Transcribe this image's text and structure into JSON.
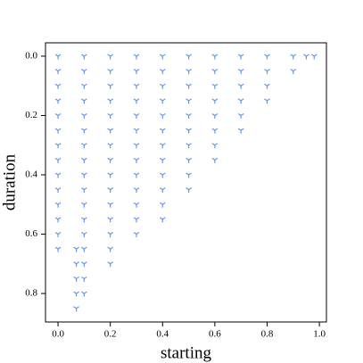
{
  "chart_data": {
    "type": "scatter",
    "xlabel": "starting",
    "ylabel": "duration",
    "color": "#6495ed",
    "marker": "tri_down",
    "y_inverted": true,
    "grid": false,
    "xlim": [
      -0.048,
      1.027
    ],
    "ylim": [
      -0.045,
      0.896
    ],
    "xticks": [
      {
        "value": 0,
        "label": "0.0"
      },
      {
        "value": 0.2,
        "label": "0.2"
      },
      {
        "value": 0.4,
        "label": "0.4"
      },
      {
        "value": 0.6,
        "label": "0.6"
      },
      {
        "value": 0.8,
        "label": "0.8"
      },
      {
        "value": 1,
        "label": "1.0"
      }
    ],
    "yticks": [
      {
        "value": 0,
        "label": "0.0"
      },
      {
        "value": 0.2,
        "label": "0.2"
      },
      {
        "value": 0.4,
        "label": "0.4"
      },
      {
        "value": 0.6,
        "label": "0.6"
      },
      {
        "value": 0.8,
        "label": "0.8"
      }
    ],
    "x": [
      0,
      0,
      0,
      0,
      0,
      0,
      0,
      0,
      0,
      0,
      0,
      0,
      0,
      0,
      0.1,
      0.1,
      0.1,
      0.1,
      0.1,
      0.1,
      0.1,
      0.1,
      0.1,
      0.1,
      0.1,
      0.1,
      0.1,
      0.1,
      0.1,
      0.1,
      0.1,
      0.2,
      0.2,
      0.2,
      0.2,
      0.2,
      0.2,
      0.2,
      0.2,
      0.2,
      0.2,
      0.2,
      0.2,
      0.2,
      0.2,
      0.2,
      0.3,
      0.3,
      0.3,
      0.3,
      0.3,
      0.3,
      0.3,
      0.3,
      0.3,
      0.3,
      0.3,
      0.3,
      0.3,
      0.4,
      0.4,
      0.4,
      0.4,
      0.4,
      0.4,
      0.4,
      0.4,
      0.4,
      0.4,
      0.4,
      0.4,
      0.5,
      0.5,
      0.5,
      0.5,
      0.5,
      0.5,
      0.5,
      0.5,
      0.5,
      0.5,
      0.6,
      0.6,
      0.6,
      0.6,
      0.6,
      0.6,
      0.6,
      0.6,
      0.7,
      0.7,
      0.7,
      0.7,
      0.7,
      0.7,
      0.8,
      0.8,
      0.8,
      0.8,
      0.9,
      0.9,
      0.95,
      0.98,
      0.07,
      0.07,
      0.07,
      0.07,
      0.07
    ],
    "y": [
      0,
      0.05,
      0.1,
      0.15,
      0.2,
      0.25,
      0.3,
      0.35,
      0.4,
      0.45,
      0.5,
      0.55,
      0.6,
      0.65,
      0,
      0.05,
      0.1,
      0.15,
      0.2,
      0.25,
      0.3,
      0.35,
      0.4,
      0.45,
      0.5,
      0.55,
      0.6,
      0.65,
      0.7,
      0.75,
      0.8,
      0,
      0.05,
      0.1,
      0.15,
      0.2,
      0.25,
      0.3,
      0.35,
      0.4,
      0.45,
      0.5,
      0.55,
      0.6,
      0.65,
      0.7,
      0,
      0.05,
      0.1,
      0.15,
      0.2,
      0.25,
      0.3,
      0.35,
      0.4,
      0.45,
      0.5,
      0.55,
      0.6,
      0,
      0.05,
      0.1,
      0.15,
      0.2,
      0.25,
      0.3,
      0.35,
      0.4,
      0.45,
      0.5,
      0.55,
      0,
      0.05,
      0.1,
      0.15,
      0.2,
      0.25,
      0.3,
      0.35,
      0.4,
      0.45,
      0,
      0.05,
      0.1,
      0.15,
      0.2,
      0.25,
      0.3,
      0.35,
      0,
      0.05,
      0.1,
      0.15,
      0.2,
      0.25,
      0,
      0.05,
      0.1,
      0.15,
      0,
      0.05,
      0,
      0,
      0.65,
      0.7,
      0.75,
      0.8,
      0.85
    ]
  }
}
